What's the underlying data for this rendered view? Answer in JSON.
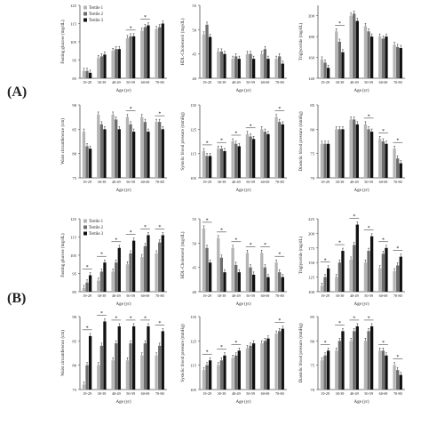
{
  "figure": {
    "panel_labels": [
      "(A)",
      "(B)"
    ],
    "age_axis_label": "Age (yr)"
  },
  "chart_data": [
    {
      "type": "bar",
      "panel": "A",
      "title": "",
      "ylabel": "Fasting glucose (mg/dL)",
      "xlabel": "Age (yr)",
      "categories": [
        "19-29",
        "30-39",
        "40-49",
        "50-59",
        "60-69",
        "70-80"
      ],
      "ylim": [
        85,
        125
      ],
      "yticks": [
        85,
        95,
        105,
        115,
        125
      ],
      "legend": [
        "Tertile 1",
        "Tertile 2",
        "Tertile 3"
      ],
      "series": [
        {
          "name": "Tertile 1",
          "values": [
            89,
            96,
            100,
            107,
            111,
            112
          ]
        },
        {
          "name": "Tertile 2",
          "values": [
            89,
            97,
            101,
            108,
            113,
            113
          ]
        },
        {
          "name": "Tertile 3",
          "values": [
            88,
            98,
            101,
            108,
            114,
            115
          ]
        }
      ],
      "sig": [
        3,
        4
      ]
    },
    {
      "type": "bar",
      "panel": "A",
      "title": "",
      "ylabel": "HDL-Cholesterol (mg/dL)",
      "xlabel": "Age (yr)",
      "categories": [
        "19-29",
        "30-39",
        "40-49",
        "50-59",
        "60-69",
        "70-80"
      ],
      "ylim": [
        40,
        55
      ],
      "yticks": [
        40,
        45,
        50,
        55
      ],
      "series": [
        {
          "name": "Tertile 1",
          "values": [
            49,
            45.5,
            44,
            45,
            45,
            44
          ]
        },
        {
          "name": "Tertile 2",
          "values": [
            51,
            45.5,
            44.5,
            45,
            46,
            44.5
          ]
        },
        {
          "name": "Tertile 3",
          "values": [
            48.5,
            45,
            44,
            44,
            44,
            43
          ]
        }
      ],
      "sig": []
    },
    {
      "type": "bar",
      "panel": "A",
      "title": "",
      "ylabel": "Triglyceride (mg/dL)",
      "xlabel": "Age (yr)",
      "categories": [
        "19-29",
        "30-39",
        "40-49",
        "50-59",
        "60-69",
        "70-80"
      ],
      "ylim": [
        140,
        210
      ],
      "yticks": [
        140,
        160,
        180,
        200
      ],
      "series": [
        {
          "name": "Tertile 1",
          "values": [
            158,
            185,
            200,
            190,
            180,
            172
          ]
        },
        {
          "name": "Tertile 2",
          "values": [
            155,
            175,
            202,
            185,
            178,
            170
          ]
        },
        {
          "name": "Tertile 3",
          "values": [
            150,
            165,
            195,
            180,
            180,
            169
          ]
        }
      ],
      "sig": [
        1
      ]
    },
    {
      "type": "bar",
      "panel": "A",
      "title": "",
      "ylabel": "Waist circumference (cm)",
      "xlabel": "Age (yr)",
      "categories": [
        "19-29",
        "30-39",
        "40-49",
        "50-59",
        "60-69",
        "70-80"
      ],
      "ylim": [
        75,
        90
      ],
      "yticks": [
        75,
        80,
        85,
        90
      ],
      "series": [
        {
          "name": "Tertile 1",
          "values": [
            84.5,
            88,
            88,
            87.5,
            87.5,
            86.5
          ]
        },
        {
          "name": "Tertile 2",
          "values": [
            81.5,
            86,
            87,
            86,
            86.5,
            86.5
          ]
        },
        {
          "name": "Tertile 3",
          "values": [
            81,
            85,
            85,
            84.5,
            84.5,
            85
          ]
        }
      ],
      "sig": [
        3,
        5
      ]
    },
    {
      "type": "bar",
      "panel": "A",
      "title": "",
      "ylabel": "Systolic blood pressure (mmHg)",
      "xlabel": "Age (yr)",
      "categories": [
        "19-29",
        "30-39",
        "40-49",
        "50-59",
        "60-69",
        "70-80"
      ],
      "ylim": [
        105,
        135
      ],
      "yticks": [
        105,
        115,
        125,
        135
      ],
      "series": [
        {
          "name": "Tertile 1",
          "values": [
            116,
            117,
            120,
            123,
            125,
            130
          ]
        },
        {
          "name": "Tertile 2",
          "values": [
            114,
            117,
            119,
            122,
            124,
            128
          ]
        },
        {
          "name": "Tertile 3",
          "values": [
            114,
            116,
            118,
            121,
            123,
            127
          ]
        }
      ],
      "sig": [
        0,
        1,
        2,
        3,
        5
      ]
    },
    {
      "type": "bar",
      "panel": "A",
      "title": "",
      "ylabel": "Diastolic blood pressure (mmHg)",
      "xlabel": "Age (yr)",
      "categories": [
        "19-29",
        "30-39",
        "40-49",
        "50-59",
        "60-69",
        "70-80"
      ],
      "ylim": [
        70,
        85
      ],
      "yticks": [
        70,
        75,
        80,
        85
      ],
      "series": [
        {
          "name": "Tertile 1",
          "values": [
            77,
            80,
            82,
            81,
            78,
            76
          ]
        },
        {
          "name": "Tertile 2",
          "values": [
            77,
            80,
            82,
            80,
            77.5,
            74
          ]
        },
        {
          "name": "Tertile 3",
          "values": [
            77,
            80,
            81,
            79.5,
            77,
            73
          ]
        }
      ],
      "sig": [
        3,
        4,
        5
      ]
    },
    {
      "type": "bar",
      "panel": "B",
      "title": "",
      "ylabel": "Fasting glucose (mg/dL)",
      "xlabel": "Age (yr)",
      "categories": [
        "19-29",
        "30-39",
        "40-49",
        "50-59",
        "60-69",
        "70-80"
      ],
      "ylim": [
        85,
        125
      ],
      "yticks": [
        85,
        95,
        105,
        115,
        125
      ],
      "legend": [
        "Tertile 1",
        "Tertile 2",
        "Tertile 3"
      ],
      "series": [
        {
          "name": "Tertile 1",
          "values": [
            87,
            91,
            96,
            100,
            104,
            106
          ]
        },
        {
          "name": "Tertile 2",
          "values": [
            90,
            96,
            101,
            106,
            110,
            112
          ]
        },
        {
          "name": "Tertile 3",
          "values": [
            94,
            101,
            109,
            113,
            116,
            116
          ]
        }
      ],
      "sig": [
        0,
        1,
        2,
        3,
        4,
        5
      ]
    },
    {
      "type": "bar",
      "panel": "B",
      "title": "",
      "ylabel": "HDL-Cholesterol (mg/dL)",
      "xlabel": "Age (yr)",
      "categories": [
        "19-29",
        "30-39",
        "40-49",
        "50-59",
        "60-69",
        "70-80"
      ],
      "ylim": [
        40,
        55
      ],
      "yticks": [
        40,
        45,
        50,
        55
      ],
      "series": [
        {
          "name": "Tertile 1",
          "values": [
            53,
            51,
            49,
            48,
            48,
            46
          ]
        },
        {
          "name": "Tertile 2",
          "values": [
            49,
            47,
            45.5,
            45,
            45,
            44
          ]
        },
        {
          "name": "Tertile 3",
          "values": [
            46,
            44,
            44,
            43.5,
            43,
            43
          ]
        }
      ],
      "sig": [
        0,
        1,
        2,
        3,
        4,
        5
      ]
    },
    {
      "type": "bar",
      "panel": "B",
      "title": "",
      "ylabel": "Triglyceride (mg/dL)",
      "xlabel": "Age (yr)",
      "categories": [
        "19-29",
        "30-39",
        "40-49",
        "50-59",
        "60-69",
        "70-80"
      ],
      "ylim": [
        100,
        225
      ],
      "yticks": [
        100,
        125,
        150,
        175,
        200,
        225
      ],
      "series": [
        {
          "name": "Tertile 1",
          "values": [
            110,
            125,
            155,
            150,
            140,
            135
          ]
        },
        {
          "name": "Tertile 2",
          "values": [
            125,
            150,
            180,
            170,
            165,
            145
          ]
        },
        {
          "name": "Tertile 3",
          "values": [
            140,
            170,
            215,
            195,
            175,
            160
          ]
        }
      ],
      "sig": [
        0,
        1,
        2,
        3,
        4,
        5
      ]
    },
    {
      "type": "bar",
      "panel": "B",
      "title": "",
      "ylabel": "Waist circumference (cm)",
      "xlabel": "Age (yr)",
      "categories": [
        "19-29",
        "30-39",
        "40-49",
        "50-59",
        "60-69",
        "70-80"
      ],
      "ylim": [
        75,
        90
      ],
      "yticks": [
        75,
        80,
        85,
        90
      ],
      "series": [
        {
          "name": "Tertile 1",
          "values": [
            76,
            80,
            81,
            81,
            82,
            82
          ]
        },
        {
          "name": "Tertile 2",
          "values": [
            80,
            84,
            84.5,
            84.5,
            84.5,
            84
          ]
        },
        {
          "name": "Tertile 3",
          "values": [
            86,
            89,
            88,
            88,
            88,
            87
          ]
        }
      ],
      "sig": [
        0,
        1,
        2,
        3,
        4,
        5
      ]
    },
    {
      "type": "bar",
      "panel": "B",
      "title": "",
      "ylabel": "Systolic blood pressure (mmHg)",
      "xlabel": "Age (yr)",
      "categories": [
        "19-29",
        "30-39",
        "40-49",
        "50-59",
        "60-69",
        "70-80"
      ],
      "ylim": [
        105,
        135
      ],
      "yticks": [
        105,
        115,
        125,
        135
      ],
      "series": [
        {
          "name": "Tertile 1",
          "values": [
            113,
            115,
            118,
            122,
            124,
            128
          ]
        },
        {
          "name": "Tertile 2",
          "values": [
            115,
            117,
            119,
            123,
            125,
            129
          ]
        },
        {
          "name": "Tertile 3",
          "values": [
            117,
            119,
            121,
            124,
            126,
            130
          ]
        }
      ],
      "sig": [
        0,
        1,
        2,
        5
      ]
    },
    {
      "type": "bar",
      "panel": "B",
      "title": "",
      "ylabel": "Diastolic blood pressure (mmHg)",
      "xlabel": "Age (yr)",
      "categories": [
        "19-29",
        "30-39",
        "40-49",
        "50-59",
        "60-69",
        "70-80"
      ],
      "ylim": [
        70,
        85
      ],
      "yticks": [
        70,
        75,
        80,
        85
      ],
      "series": [
        {
          "name": "Tertile 1",
          "values": [
            76,
            78,
            80,
            80,
            78,
            75
          ]
        },
        {
          "name": "Tertile 2",
          "values": [
            77,
            80,
            82,
            82,
            78,
            74
          ]
        },
        {
          "name": "Tertile 3",
          "values": [
            78,
            82,
            83,
            83,
            77,
            73
          ]
        }
      ],
      "sig": [
        0,
        1,
        2,
        3,
        4,
        5
      ]
    }
  ],
  "style": {
    "series_colors": [
      "#b5b5b5",
      "#6e6e6e",
      "#111111"
    ],
    "axis_color": "#555555",
    "background": "#ffffff"
  }
}
